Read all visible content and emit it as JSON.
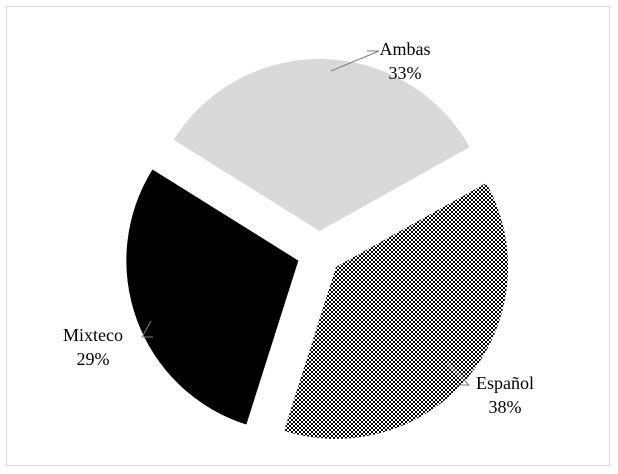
{
  "chart_data": {
    "type": "pie",
    "style": "exploded",
    "slices": [
      {
        "label": "Ambas",
        "value": 33,
        "value_text": "33%",
        "fill": "#d9d9d9",
        "pattern": "solid"
      },
      {
        "label": "Español",
        "value": 38,
        "value_text": "38%",
        "fill": "#000000",
        "pattern": "dots"
      },
      {
        "label": "Mixteco",
        "value": 29,
        "value_text": "29%",
        "fill": "#000000",
        "pattern": "solid"
      }
    ],
    "label_position": "outside-with-leader-lines"
  }
}
